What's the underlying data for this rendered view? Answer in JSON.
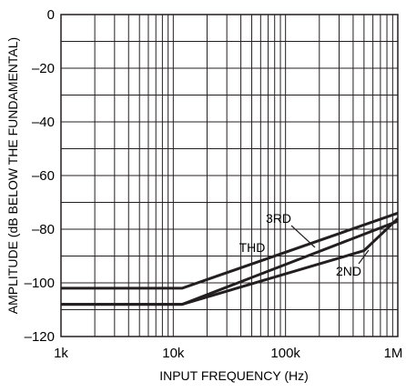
{
  "chart_data": {
    "type": "line",
    "title": "",
    "xlabel": "INPUT FREQUENCY (Hz)",
    "ylabel": "AMPLITUDE (dB BELOW THE FUNDAMENTAL)",
    "x_scale": "log",
    "xlim": [
      1000,
      1000000
    ],
    "ylim": [
      -120,
      0
    ],
    "x_ticks": [
      {
        "value": 1000,
        "label": "1k"
      },
      {
        "value": 10000,
        "label": "10k"
      },
      {
        "value": 100000,
        "label": "100k"
      },
      {
        "value": 1000000,
        "label": "1M"
      }
    ],
    "y_ticks": [
      {
        "value": 0,
        "label": "0"
      },
      {
        "value": -20,
        "label": "–20"
      },
      {
        "value": -40,
        "label": "–40"
      },
      {
        "value": -60,
        "label": "–60"
      },
      {
        "value": -80,
        "label": "–80"
      },
      {
        "value": -100,
        "label": "–100"
      },
      {
        "value": -120,
        "label": "–120"
      }
    ],
    "y_minor_step": 10,
    "grid": true,
    "legend": "none",
    "series": [
      {
        "name": "3RD",
        "points": [
          [
            1000,
            -108
          ],
          [
            12000,
            -108
          ],
          [
            1000000,
            -77
          ]
        ]
      },
      {
        "name": "THD",
        "points": [
          [
            1000,
            -102
          ],
          [
            12000,
            -102
          ],
          [
            1000000,
            -74
          ]
        ]
      },
      {
        "name": "2ND",
        "points": [
          [
            1000,
            -108
          ],
          [
            12000,
            -108
          ],
          [
            500000,
            -88
          ],
          [
            1000000,
            -76
          ]
        ]
      }
    ],
    "annotations": [
      {
        "text": "3RD",
        "series": "3RD"
      },
      {
        "text": "THD",
        "series": "THD"
      },
      {
        "text": "2ND",
        "series": "2ND"
      }
    ],
    "line_color": "#231f20"
  }
}
